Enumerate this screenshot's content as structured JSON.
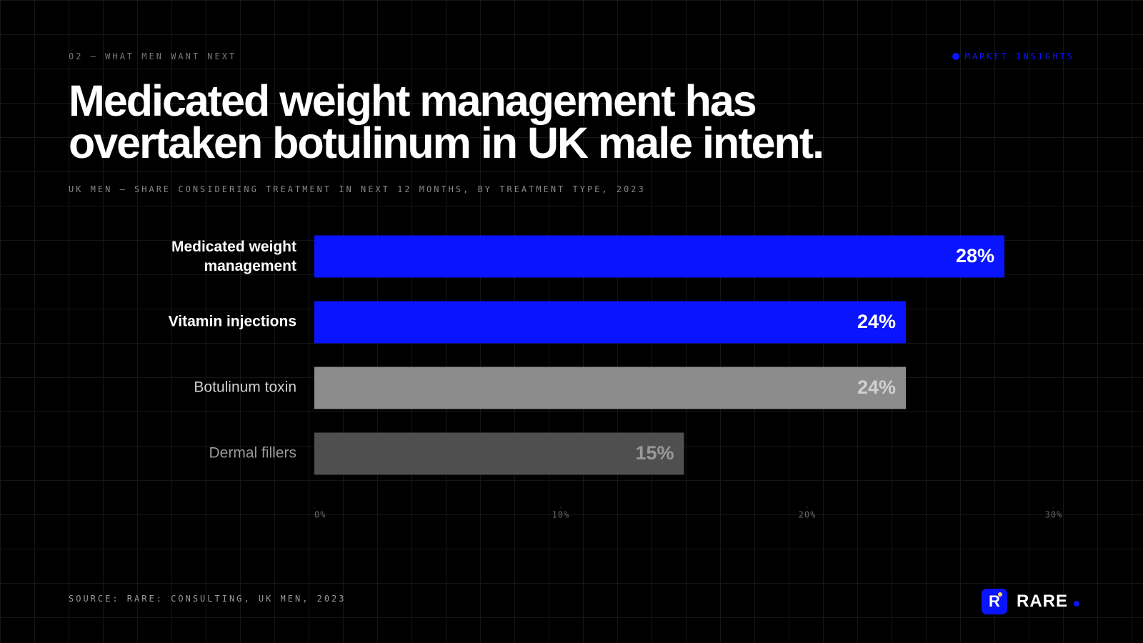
{
  "header": {
    "kicker": "02 — WHAT MEN WANT NEXT",
    "tag": "MARKET INSIGHTS"
  },
  "chart_data": {
    "type": "bar",
    "orientation": "horizontal",
    "title": "Medicated weight management has overtaken botulinum in UK male intent.",
    "subtitle": "UK MEN — SHARE CONSIDERING TREATMENT IN NEXT 12 MONTHS, BY TREATMENT TYPE, 2023",
    "categories": [
      "Medicated weight management",
      "Vitamin injections",
      "Botulinum toxin",
      "Dermal fillers"
    ],
    "values": [
      28,
      24,
      24,
      15
    ],
    "value_labels": [
      "28%",
      "24%",
      "24%",
      "15%"
    ],
    "colors": [
      "#0a14ff",
      "#0a14ff",
      "#8c8c8c",
      "#4f4f4f"
    ],
    "label_colors": [
      "#ffffff",
      "#ffffff",
      "#d0d0d0",
      "#9a9a9a"
    ],
    "xlim": [
      0,
      30
    ],
    "xticks": [
      {
        "value": 0,
        "label": "0%"
      },
      {
        "value": 10,
        "label": "10%"
      },
      {
        "value": 20,
        "label": "20%"
      },
      {
        "value": 30,
        "label": "30%"
      }
    ],
    "source": "SOURCE: RARE: CONSULTING, UK MEN, 2023"
  },
  "footer": {
    "logo_letter": "R",
    "brand": "RARE"
  }
}
